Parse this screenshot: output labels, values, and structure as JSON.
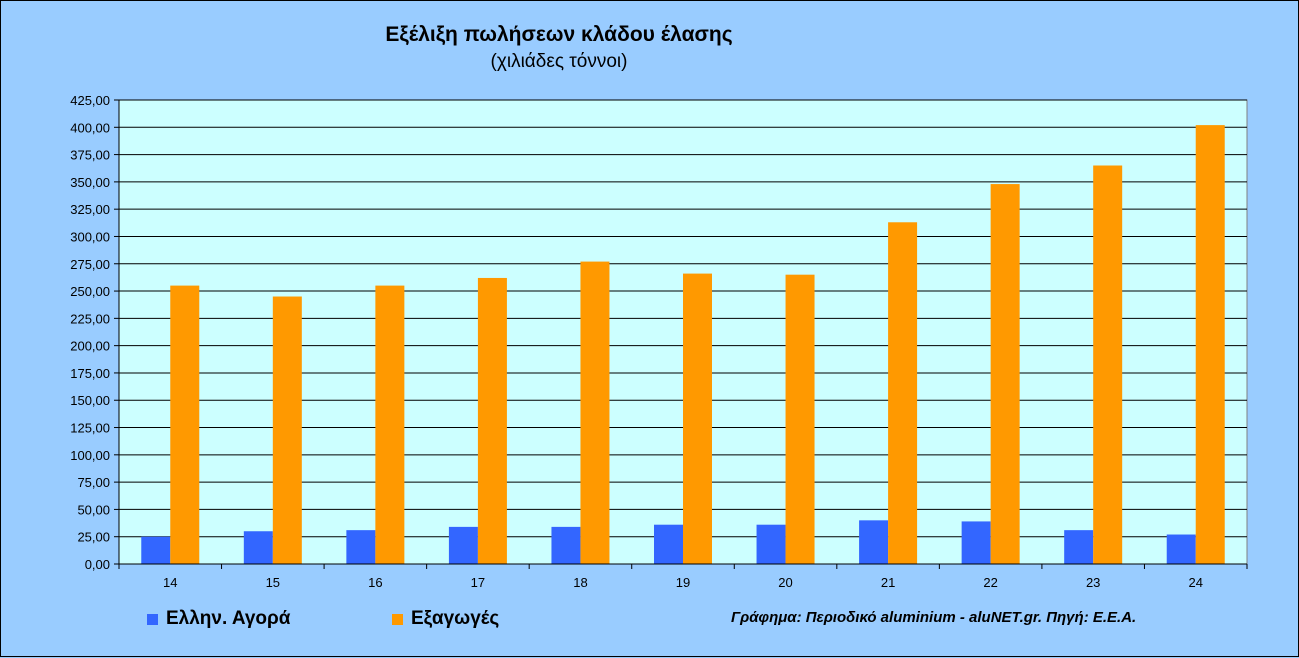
{
  "colors": {
    "background": "#99ccff",
    "plot": "#ccffff",
    "domestic": "#3366ff",
    "exports": "#ff9900"
  },
  "credit": "Γράφημα: Περιοδικό aluminium - aluNET.gr. Πηγή: Ε.Ε.Α.",
  "chart_data": {
    "type": "bar",
    "title": "Εξέλιξη πωλήσεων κλάδου έλασης",
    "subtitle": "(χιλιάδες τόννοι)",
    "xlabel": "",
    "ylabel": "",
    "categories": [
      "14",
      "15",
      "16",
      "17",
      "18",
      "19",
      "20",
      "21",
      "22",
      "23",
      "24"
    ],
    "series": [
      {
        "name": "Ελλην. Αγορά",
        "values": [
          25,
          30,
          31,
          34,
          34,
          36,
          36,
          40,
          39,
          31,
          27
        ]
      },
      {
        "name": "Εξαγωγές",
        "values": [
          255,
          245,
          255,
          262,
          277,
          266,
          265,
          313,
          348,
          365,
          402
        ]
      }
    ],
    "ylim": [
      0,
      425
    ],
    "ytick_step": 25,
    "ytick_labels": [
      "0,00",
      "25,00",
      "50,00",
      "75,00",
      "100,00",
      "125,00",
      "150,00",
      "175,00",
      "200,00",
      "225,00",
      "250,00",
      "275,00",
      "300,00",
      "325,00",
      "350,00",
      "375,00",
      "400,00",
      "425,00"
    ],
    "grid": true,
    "legend": "bottom-left"
  }
}
